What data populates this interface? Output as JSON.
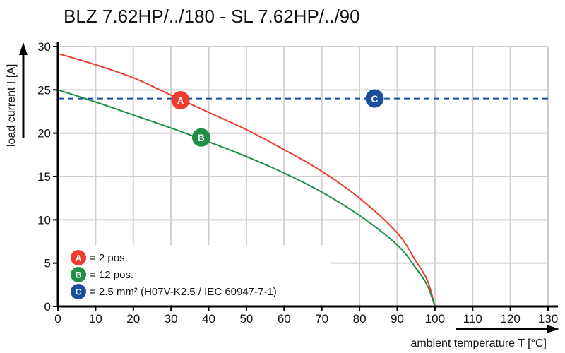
{
  "chart_data": {
    "type": "line",
    "title": "BLZ 7.62HP/../180 - SL 7.62HP/../90",
    "xlabel": "ambient temperature T [°C]",
    "ylabel": "load current I [A]",
    "xlim": [
      0,
      130
    ],
    "ylim": [
      0,
      30
    ],
    "xticks": [
      0,
      10,
      20,
      30,
      40,
      50,
      60,
      70,
      80,
      90,
      100,
      110,
      120,
      130
    ],
    "yticks": [
      0,
      5,
      10,
      15,
      20,
      25,
      30
    ],
    "grid": true,
    "legend_position": "bottom-left",
    "series": [
      {
        "marker": "A",
        "color": "#f03c2e",
        "x": [
          0,
          10,
          20,
          30,
          40,
          50,
          60,
          70,
          80,
          90,
          95,
          98,
          100
        ],
        "y": [
          29.2,
          27.9,
          26.4,
          24.4,
          22.4,
          20.4,
          18.1,
          15.6,
          12.5,
          8.5,
          5.2,
          3.0,
          0
        ]
      },
      {
        "marker": "B",
        "color": "#1f8f46",
        "x": [
          0,
          10,
          20,
          30,
          40,
          50,
          60,
          70,
          80,
          90,
          95,
          98,
          100
        ],
        "y": [
          25.0,
          23.6,
          22.1,
          20.6,
          19.0,
          17.3,
          15.4,
          13.2,
          10.5,
          7.1,
          4.4,
          2.4,
          0
        ]
      },
      {
        "marker": "C",
        "color": "#1b4f9e",
        "style": "dashed",
        "x": [
          0,
          130
        ],
        "y": [
          24,
          24
        ]
      }
    ],
    "markers": [
      {
        "label": "A",
        "x": 32.5,
        "y": 23.8,
        "color": "#f03c2e"
      },
      {
        "label": "B",
        "x": 38,
        "y": 19.5,
        "color": "#1f8f46"
      },
      {
        "label": "C",
        "x": 84,
        "y": 24,
        "color": "#1b4f9e"
      }
    ],
    "legend": [
      {
        "label": "A",
        "text": "= 2 pos.",
        "color": "#f03c2e"
      },
      {
        "label": "B",
        "text": "= 12 pos.",
        "color": "#1f8f46"
      },
      {
        "label": "C",
        "text": "= 2.5 mm² (H07V-K2.5 / IEC 60947-7-1)",
        "color": "#1b4f9e"
      }
    ]
  }
}
